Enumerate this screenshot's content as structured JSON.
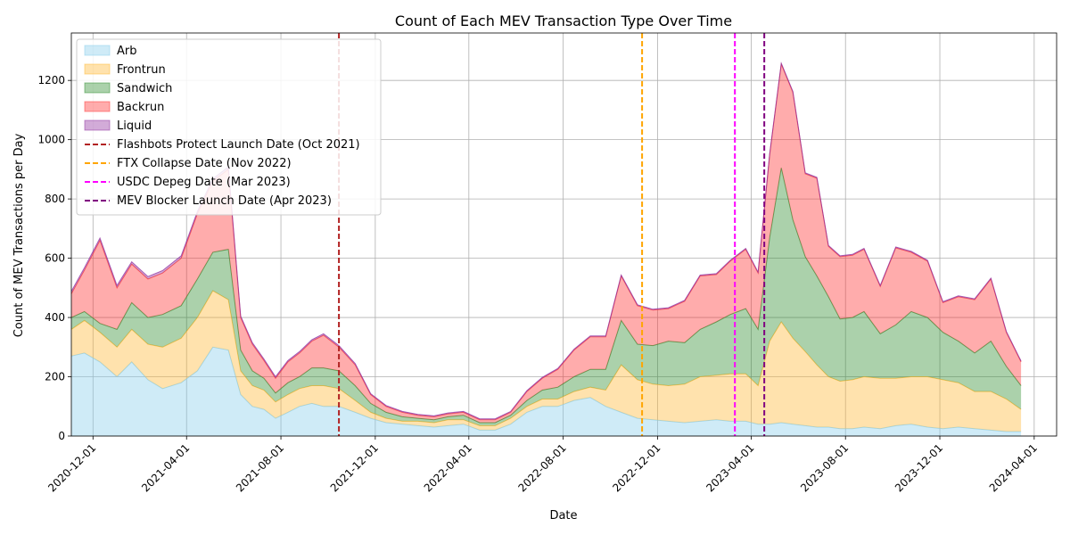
{
  "chart_data": {
    "type": "area",
    "stacked": true,
    "title": "Count of Each MEV Transaction Type Over Time",
    "xlabel": "Date",
    "ylabel": "Count of MEV Transactions per Day",
    "xlim": [
      "2020-11-03",
      "2024-04-30"
    ],
    "ylim": [
      0,
      1360
    ],
    "y_ticks": [
      0,
      200,
      400,
      600,
      800,
      1000,
      1200
    ],
    "x_ticks": [
      "2020-12-01",
      "2021-04-01",
      "2021-08-01",
      "2021-12-01",
      "2022-04-01",
      "2022-08-01",
      "2022-12-01",
      "2023-04-01",
      "2023-08-01",
      "2023-12-01",
      "2024-04-01"
    ],
    "grid": true,
    "legend_position": "top-left",
    "x": [
      "2020-11-03",
      "2020-11-20",
      "2020-12-10",
      "2021-01-01",
      "2021-01-20",
      "2021-02-10",
      "2021-03-01",
      "2021-03-25",
      "2021-04-15",
      "2021-05-05",
      "2021-05-25",
      "2021-06-10",
      "2021-06-25",
      "2021-07-10",
      "2021-07-25",
      "2021-08-10",
      "2021-08-25",
      "2021-09-10",
      "2021-09-25",
      "2021-10-15",
      "2021-11-05",
      "2021-11-25",
      "2021-12-15",
      "2022-01-05",
      "2022-01-25",
      "2022-02-15",
      "2022-03-05",
      "2022-03-25",
      "2022-04-15",
      "2022-05-05",
      "2022-05-25",
      "2022-06-15",
      "2022-07-05",
      "2022-07-25",
      "2022-08-15",
      "2022-09-05",
      "2022-09-25",
      "2022-10-15",
      "2022-11-05",
      "2022-11-25",
      "2022-12-15",
      "2023-01-05",
      "2023-01-25",
      "2023-02-15",
      "2023-03-05",
      "2023-03-25",
      "2023-04-10",
      "2023-04-25",
      "2023-05-10",
      "2023-05-25",
      "2023-06-10",
      "2023-06-25",
      "2023-07-10",
      "2023-07-25",
      "2023-08-10",
      "2023-08-25",
      "2023-09-15",
      "2023-10-05",
      "2023-10-25",
      "2023-11-15",
      "2023-12-05",
      "2023-12-25",
      "2024-01-15",
      "2024-02-05",
      "2024-02-25",
      "2024-03-15"
    ],
    "series": [
      {
        "name": "Arb",
        "color": "#87ceeb",
        "values": [
          270,
          280,
          250,
          200,
          250,
          190,
          160,
          180,
          220,
          300,
          290,
          140,
          100,
          90,
          60,
          80,
          100,
          110,
          100,
          100,
          80,
          60,
          45,
          40,
          35,
          30,
          35,
          40,
          20,
          20,
          40,
          80,
          100,
          100,
          120,
          130,
          100,
          80,
          60,
          55,
          50,
          45,
          50,
          55,
          50,
          50,
          40,
          40,
          45,
          40,
          35,
          30,
          30,
          25,
          25,
          30,
          25,
          35,
          40,
          30,
          25,
          30,
          25,
          20,
          15,
          15
        ]
      },
      {
        "name": "Frontrun",
        "color": "#ffb732",
        "values": [
          90,
          110,
          100,
          100,
          110,
          120,
          140,
          150,
          180,
          190,
          170,
          80,
          70,
          65,
          55,
          60,
          60,
          60,
          70,
          60,
          40,
          20,
          15,
          10,
          15,
          15,
          20,
          15,
          15,
          15,
          20,
          20,
          25,
          25,
          30,
          35,
          55,
          160,
          130,
          120,
          120,
          130,
          150,
          150,
          160,
          160,
          130,
          280,
          340,
          290,
          250,
          210,
          170,
          160,
          165,
          170,
          170,
          160,
          160,
          170,
          165,
          150,
          125,
          130,
          110,
          75
        ]
      },
      {
        "name": "Sandwich",
        "color": "#2e8b2e",
        "values": [
          40,
          30,
          30,
          60,
          90,
          90,
          110,
          110,
          130,
          130,
          170,
          70,
          50,
          40,
          30,
          40,
          40,
          60,
          60,
          60,
          50,
          30,
          20,
          15,
          10,
          10,
          10,
          15,
          10,
          10,
          10,
          20,
          30,
          40,
          50,
          60,
          70,
          150,
          120,
          130,
          150,
          140,
          160,
          180,
          200,
          220,
          190,
          350,
          520,
          400,
          320,
          300,
          270,
          210,
          210,
          220,
          150,
          180,
          220,
          200,
          160,
          140,
          130,
          170,
          110,
          80
        ]
      },
      {
        "name": "Backrun",
        "color": "#ff3030",
        "values": [
          80,
          140,
          280,
          140,
          130,
          130,
          140,
          160,
          220,
          240,
          270,
          110,
          90,
          60,
          50,
          70,
          80,
          90,
          110,
          80,
          70,
          30,
          20,
          15,
          10,
          10,
          10,
          10,
          10,
          10,
          10,
          30,
          40,
          60,
          90,
          110,
          110,
          150,
          130,
          120,
          110,
          140,
          180,
          160,
          180,
          200,
          190,
          280,
          350,
          430,
          280,
          330,
          170,
          210,
          210,
          210,
          160,
          260,
          200,
          190,
          100,
          150,
          180,
          210,
          115,
          80
        ]
      },
      {
        "name": "Liquid",
        "color": "#8e2e9e",
        "values": [
          8,
          8,
          8,
          8,
          8,
          8,
          8,
          8,
          8,
          8,
          8,
          5,
          5,
          5,
          5,
          5,
          5,
          5,
          5,
          5,
          5,
          3,
          3,
          3,
          3,
          3,
          3,
          3,
          3,
          3,
          3,
          3,
          3,
          3,
          3,
          3,
          3,
          3,
          3,
          3,
          3,
          3,
          3,
          3,
          3,
          3,
          3,
          3,
          3,
          3,
          3,
          3,
          3,
          3,
          3,
          3,
          3,
          3,
          3,
          3,
          3,
          3,
          3,
          3,
          3,
          3
        ]
      }
    ],
    "events": [
      {
        "label": "Flashbots Protect Launch Date (Oct 2021)",
        "date": "2021-10-15",
        "color": "#b22222"
      },
      {
        "label": "FTX Collapse Date (Nov 2022)",
        "date": "2022-11-11",
        "color": "#ffa500"
      },
      {
        "label": "USDC Depeg Date (Mar 2023)",
        "date": "2023-03-11",
        "color": "#ff00ff"
      },
      {
        "label": "MEV Blocker Launch Date (Apr 2023)",
        "date": "2023-04-18",
        "color": "#800080"
      }
    ]
  }
}
